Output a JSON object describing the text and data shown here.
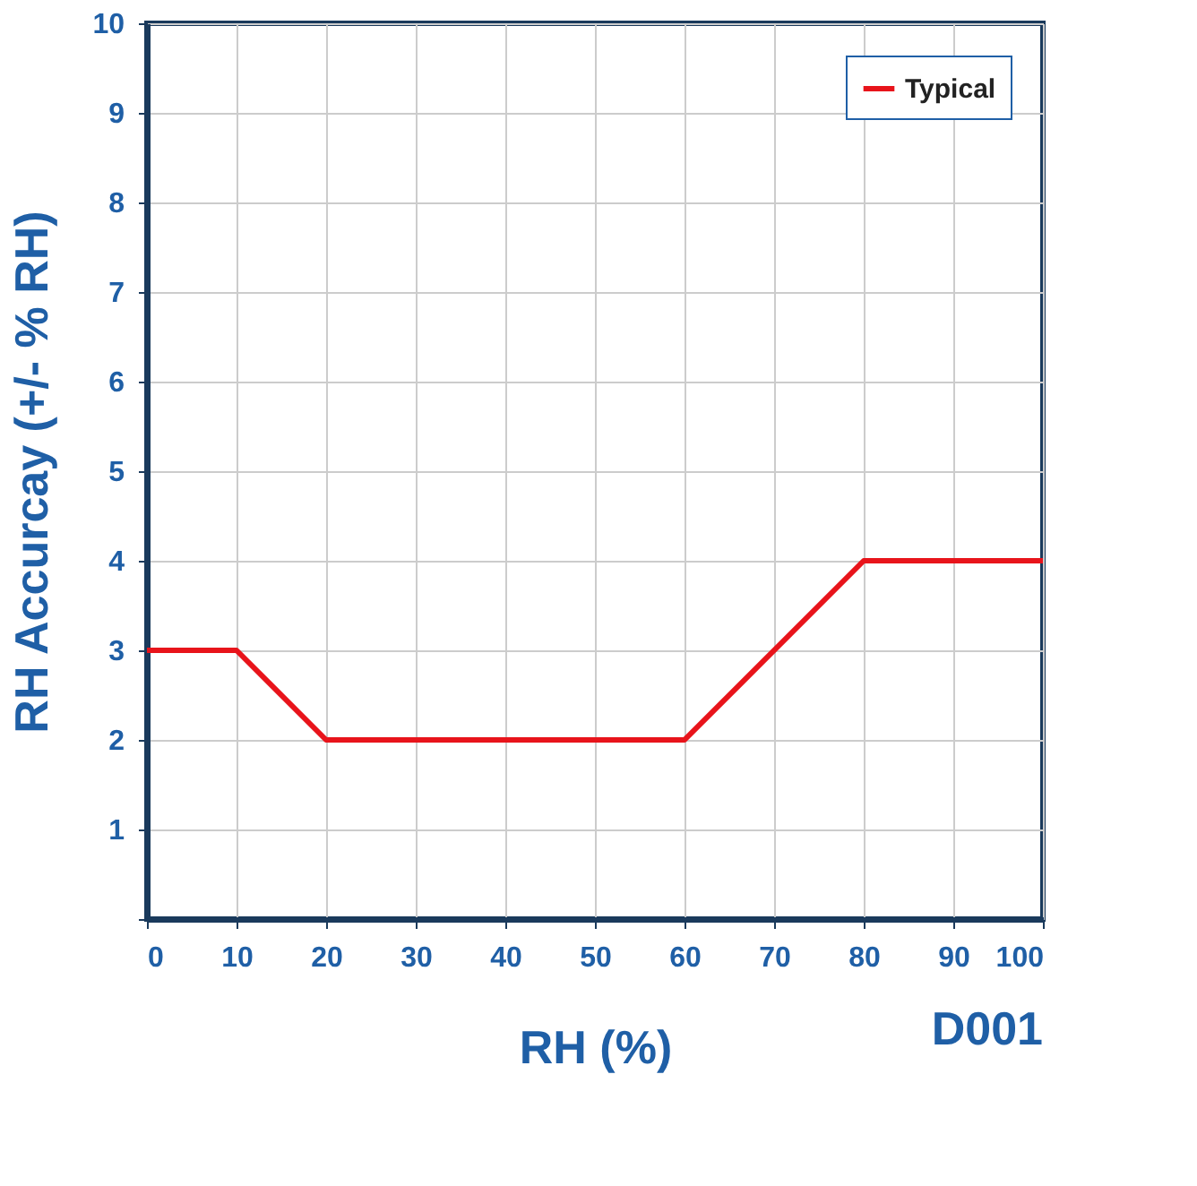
{
  "chart_data": {
    "type": "line",
    "xlabel": "RH (%)",
    "ylabel": "RH Accurcay (+/- % RH)",
    "x": [
      0,
      10,
      20,
      60,
      80,
      100
    ],
    "series": [
      {
        "name": "Typical",
        "color": "#e8141b",
        "values": [
          3,
          3,
          2,
          2,
          4,
          4
        ]
      }
    ],
    "xlim": [
      0,
      100
    ],
    "ylim": [
      0,
      10
    ],
    "xticks": [
      0,
      10,
      20,
      30,
      40,
      50,
      60,
      70,
      80,
      90,
      100
    ],
    "yticks": [
      {
        "value": 0,
        "label": null
      },
      1,
      2,
      3,
      4,
      5,
      6,
      7,
      8,
      9,
      10
    ],
    "grid": true,
    "legend": "top right",
    "line_style": "solid",
    "marker": "none",
    "annotations": [
      "D001"
    ]
  }
}
